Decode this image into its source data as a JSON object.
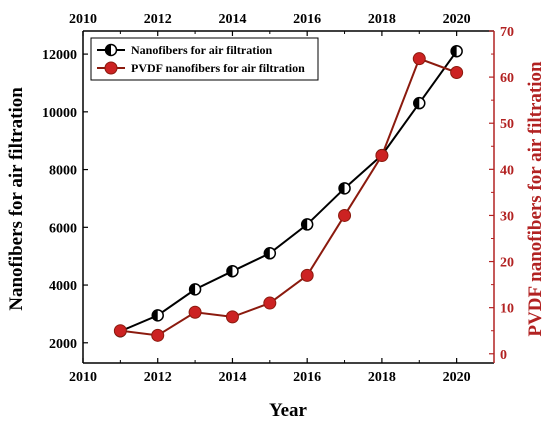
{
  "chart_data": {
    "type": "line",
    "xlabel": "Year",
    "ylabel_left": "Nanofibers for air filtration",
    "ylabel_right": "PVDF nanofibers for air filtration",
    "xlim": [
      2010,
      2021
    ],
    "ylim_left": [
      1300,
      12800
    ],
    "ylim_right": [
      -2,
      70
    ],
    "x_ticks": [
      2010,
      2012,
      2014,
      2016,
      2018,
      2020
    ],
    "y_ticks_left": [
      2000,
      4000,
      6000,
      8000,
      10000,
      12000
    ],
    "y_ticks_right": [
      0,
      10,
      20,
      30,
      40,
      50,
      60,
      70
    ],
    "grid": false,
    "legend_position": "top-left",
    "colors": {
      "left_axis": "#000000",
      "right_axis": "#b22222",
      "pvdf_line": "#8b1a0e",
      "pvdf_marker": "#cc2222"
    },
    "series": [
      {
        "name": "Nanofibers for air filtration",
        "axis": "left",
        "x": [
          2011,
          2012,
          2013,
          2014,
          2015,
          2016,
          2017,
          2018,
          2019,
          2020
        ],
        "values": [
          2400,
          2950,
          3850,
          4480,
          5100,
          6100,
          7350,
          8500,
          10300,
          12100
        ]
      },
      {
        "name": "PVDF nanofibers for air filtration",
        "axis": "right",
        "x": [
          2011,
          2012,
          2013,
          2014,
          2015,
          2016,
          2017,
          2018,
          2019,
          2020
        ],
        "values": [
          5,
          4,
          9,
          8,
          11,
          17,
          30,
          43,
          64,
          61
        ]
      }
    ]
  }
}
